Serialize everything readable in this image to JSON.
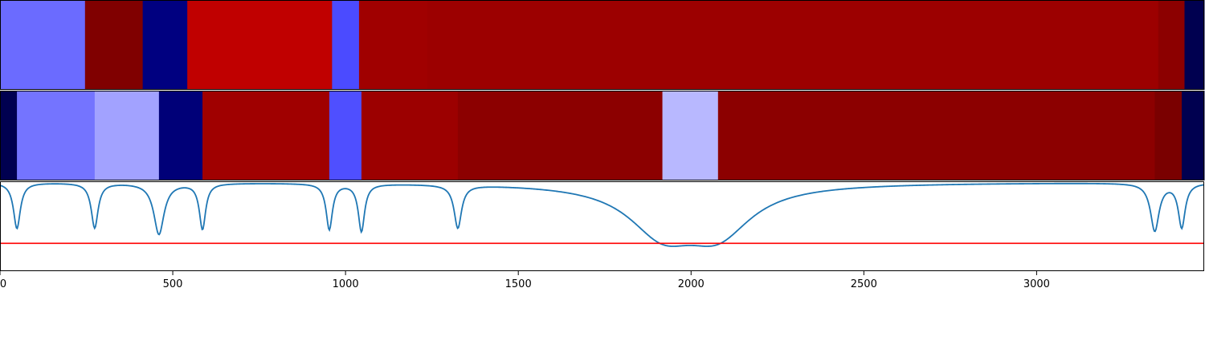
{
  "chart_data": {
    "type": "heatmap",
    "title": "",
    "xlabel": "",
    "ylabel": "",
    "xlim": [
      0,
      3485
    ],
    "x_ticks": [
      0,
      500,
      1000,
      1500,
      2000,
      2500,
      3000
    ],
    "x_tick_labels": [
      "0",
      "500",
      "1000",
      "1500",
      "2000",
      "2500",
      "3000"
    ],
    "grid": false,
    "legend": "none",
    "panels": [
      {
        "name": "",
        "type": "segment_bar",
        "segments": [
          {
            "start": 0,
            "end": 246,
            "color": "#6b6bff"
          },
          {
            "start": 246,
            "end": 413,
            "color": "#800000"
          },
          {
            "start": 413,
            "end": 542,
            "color": "#000080"
          },
          {
            "start": 542,
            "end": 961,
            "color": "#c00000"
          },
          {
            "start": 961,
            "end": 1039,
            "color": "#4b4bff"
          },
          {
            "start": 1039,
            "end": 1237,
            "color": "#a00000"
          },
          {
            "start": 1237,
            "end": 3352,
            "color": "#9c0000"
          },
          {
            "start": 3352,
            "end": 3428,
            "color": "#8c0000"
          },
          {
            "start": 3428,
            "end": 3485,
            "color": "#000050"
          }
        ]
      },
      {
        "name": "",
        "type": "segment_bar",
        "segments": [
          {
            "start": 0,
            "end": 49,
            "color": "#000050"
          },
          {
            "start": 49,
            "end": 274,
            "color": "#7474ff"
          },
          {
            "start": 274,
            "end": 460,
            "color": "#a2a2ff"
          },
          {
            "start": 460,
            "end": 586,
            "color": "#000078"
          },
          {
            "start": 586,
            "end": 953,
            "color": "#a00000"
          },
          {
            "start": 953,
            "end": 1046,
            "color": "#4f4fff"
          },
          {
            "start": 1046,
            "end": 1325,
            "color": "#9c0000"
          },
          {
            "start": 1325,
            "end": 1917,
            "color": "#8c0000"
          },
          {
            "start": 1917,
            "end": 2078,
            "color": "#b8b8ff"
          },
          {
            "start": 2078,
            "end": 3342,
            "color": "#8c0000"
          },
          {
            "start": 3342,
            "end": 3420,
            "color": "#7a0000"
          },
          {
            "start": 3420,
            "end": 3485,
            "color": "#000050"
          }
        ]
      },
      {
        "name": "",
        "type": "line",
        "ylim": [
          0,
          1
        ],
        "series": [
          {
            "name": "",
            "color": "#1f77b4",
            "kind": "dips",
            "baseline": 0.99,
            "values": [
              {
                "center": 49,
                "width": 12,
                "depth": 0.51
              },
              {
                "center": 274,
                "width": 12,
                "depth": 0.5
              },
              {
                "center": 460,
                "width": 18,
                "depth": 0.57
              },
              {
                "center": 586,
                "width": 11,
                "depth": 0.51
              },
              {
                "center": 953,
                "width": 11,
                "depth": 0.51
              },
              {
                "center": 1046,
                "width": 11,
                "depth": 0.53
              },
              {
                "center": 1325,
                "width": 13,
                "depth": 0.48
              },
              {
                "center": 1917,
                "width": 120,
                "depth": 0.51
              },
              {
                "center": 2078,
                "width": 120,
                "depth": 0.51
              },
              {
                "center": 3342,
                "width": 15,
                "depth": 0.53
              },
              {
                "center": 3420,
                "width": 12,
                "depth": 0.49
              }
            ]
          },
          {
            "name": "",
            "color": "#ff0000",
            "kind": "hline",
            "value": 0.31
          }
        ]
      }
    ]
  }
}
